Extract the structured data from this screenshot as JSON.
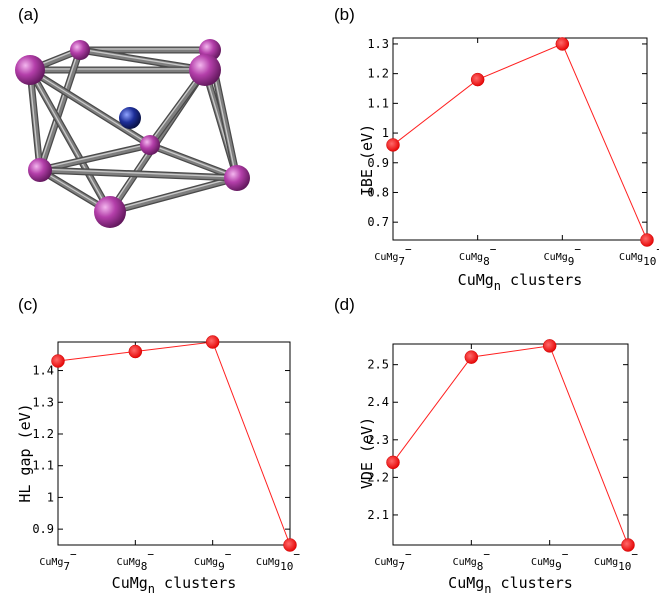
{
  "figure": {
    "panel_labels": [
      "(a)",
      "(b)",
      "(c)",
      "(d)"
    ]
  },
  "molecule": {
    "atom_colors": {
      "mg": "#a63a9e",
      "cu": "#1a2d8a",
      "bond": "#7e7e7e"
    }
  },
  "chart_data": [
    {
      "type": "line",
      "panel": "(b)",
      "categories": [
        "CuMg7−",
        "CuMg8−",
        "CuMg9−",
        "CuMg10−"
      ],
      "series": [
        {
          "values": [
            0.96,
            1.18,
            1.3,
            0.64
          ],
          "color": "#ff2020"
        }
      ],
      "xlabel": "CuMgn clusters",
      "ylabel": "IBE (eV)",
      "ylim": [
        0.64,
        1.32
      ],
      "yticks": [
        "0.7",
        "0.8",
        "0.9",
        "1",
        "1.1",
        "1.2",
        "1.3"
      ],
      "grid": false
    },
    {
      "type": "line",
      "panel": "(c)",
      "categories": [
        "CuMg7−",
        "CuMg8−",
        "CuMg9−",
        "CuMg10−"
      ],
      "series": [
        {
          "values": [
            1.43,
            1.46,
            1.49,
            0.85
          ],
          "color": "#ff2020"
        }
      ],
      "xlabel": "CuMgn clusters",
      "ylabel": "HL gap (eV)",
      "ylim": [
        0.85,
        1.49
      ],
      "yticks": [
        "0.9",
        "1",
        "1.1",
        "1.2",
        "1.3",
        "1.4"
      ],
      "grid": false
    },
    {
      "type": "line",
      "panel": "(d)",
      "categories": [
        "CuMg7−",
        "CuMg8−",
        "CuMg9−",
        "CuMg10−"
      ],
      "series": [
        {
          "values": [
            2.24,
            2.52,
            2.55,
            2.02
          ],
          "color": "#ff2020"
        }
      ],
      "xlabel": "CuMgn clusters",
      "ylabel": "VDE (eV)",
      "ylim": [
        2.02,
        2.555
      ],
      "yticks": [
        "2.1",
        "2.2",
        "2.3",
        "2.4",
        "2.5"
      ],
      "grid": false
    }
  ]
}
